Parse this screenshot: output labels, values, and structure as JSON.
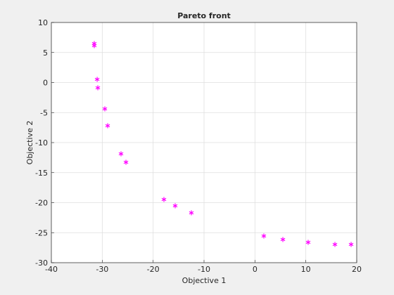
{
  "chart_data": {
    "type": "scatter",
    "title": "Pareto front",
    "x_label": "Objective 1",
    "y_label": "Objective 2",
    "series": [
      {
        "name": "Pareto front",
        "color": "#ff00ff",
        "x": [
          -31.57,
          -31.57,
          -31.0,
          -30.87,
          -29.49,
          -28.94,
          -26.31,
          -25.34,
          -17.88,
          -15.67,
          -12.49,
          1.75,
          5.49,
          10.46,
          15.72,
          18.9
        ],
        "values": [
          6.49,
          6.14,
          0.53,
          -0.88,
          -4.39,
          -7.19,
          -11.87,
          -13.27,
          -19.47,
          -20.53,
          -21.7,
          -25.56,
          -26.14,
          -26.61,
          -26.96,
          -26.96
        ]
      }
    ],
    "xlim": [
      -40,
      20
    ],
    "xticks": [
      -40,
      -30,
      -20,
      -10,
      0,
      10,
      20
    ],
    "ylim": [
      -30,
      10
    ],
    "yticks": [
      -30,
      -25,
      -20,
      -15,
      -10,
      -5,
      0,
      5,
      10
    ],
    "grid": true
  }
}
